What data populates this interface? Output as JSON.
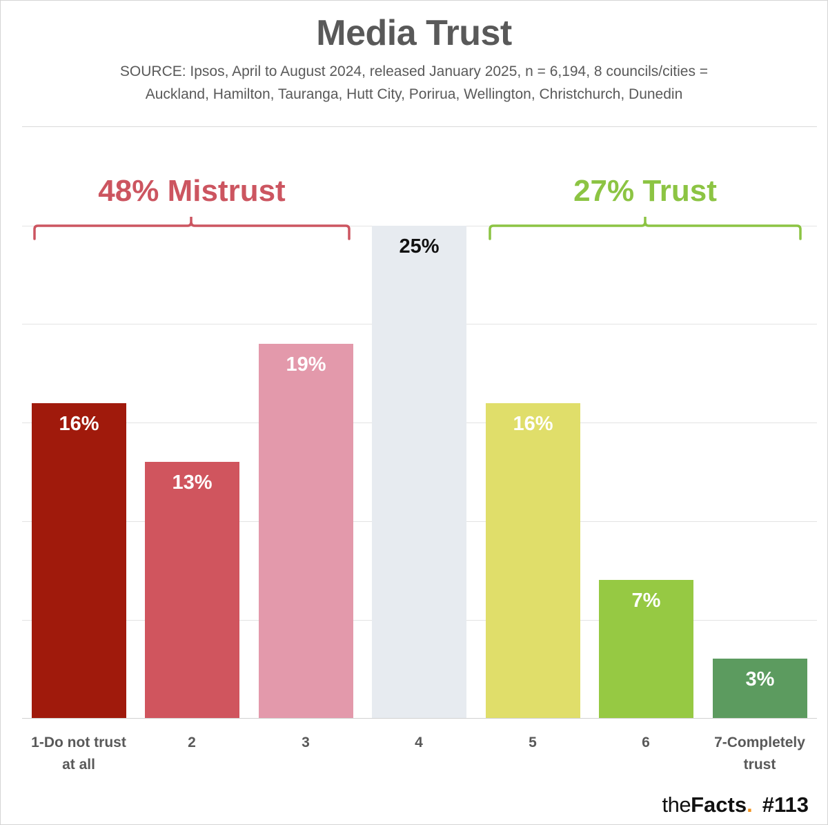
{
  "header": {
    "title": "Media Trust",
    "source_line1": "SOURCE: Ipsos, April to August 2024, released January 2025, n = 6,194, 8 councils/cities =",
    "source_line2": "Auckland, Hamilton, Tauranga, Hutt City, Porirua, Wellington, Christchurch, Dunedin"
  },
  "groups": {
    "mistrust": {
      "label": "48% Mistrust",
      "color": "#cc5560"
    },
    "trust": {
      "label": "27% Trust",
      "color": "#8cc443"
    }
  },
  "bars": [
    {
      "category": "1-Do not trust",
      "category2": "at all",
      "value": 16,
      "label": "16%",
      "color": "#a01a0c"
    },
    {
      "category": "2",
      "category2": "",
      "value": 13,
      "label": "13%",
      "color": "#d0555e"
    },
    {
      "category": "3",
      "category2": "",
      "value": 19,
      "label": "19%",
      "color": "#e399ab"
    },
    {
      "category": "4",
      "category2": "",
      "value": 25,
      "label": "25%",
      "color": "#e7ebf0"
    },
    {
      "category": "5",
      "category2": "",
      "value": 16,
      "label": "16%",
      "color": "#e0de6a"
    },
    {
      "category": "6",
      "category2": "",
      "value": 7,
      "label": "7%",
      "color": "#96c943"
    },
    {
      "category": "7-Completely",
      "category2": "trust",
      "value": 3,
      "label": "3%",
      "color": "#5c9b5f"
    }
  ],
  "footer": {
    "brand_the": "the",
    "brand_facts": "Facts",
    "brand_dot": ".",
    "issue": "#113"
  },
  "chart_data": {
    "type": "bar",
    "title": "Media Trust",
    "subtitle": "SOURCE: Ipsos, April to August 2024, released January 2025, n = 6,194, 8 councils/cities = Auckland, Hamilton, Tauranga, Hutt City, Porirua, Wellington, Christchurch, Dunedin",
    "categories": [
      "1-Do not trust at all",
      "2",
      "3",
      "4",
      "5",
      "6",
      "7-Completely trust"
    ],
    "values": [
      16,
      13,
      19,
      25,
      16,
      7,
      3
    ],
    "unit": "%",
    "xlabel": "",
    "ylabel": "",
    "ylim": [
      0,
      25
    ],
    "grid": true,
    "annotations": [
      "48% Mistrust (categories 1-3)",
      "27% Trust (categories 5-7)"
    ]
  }
}
